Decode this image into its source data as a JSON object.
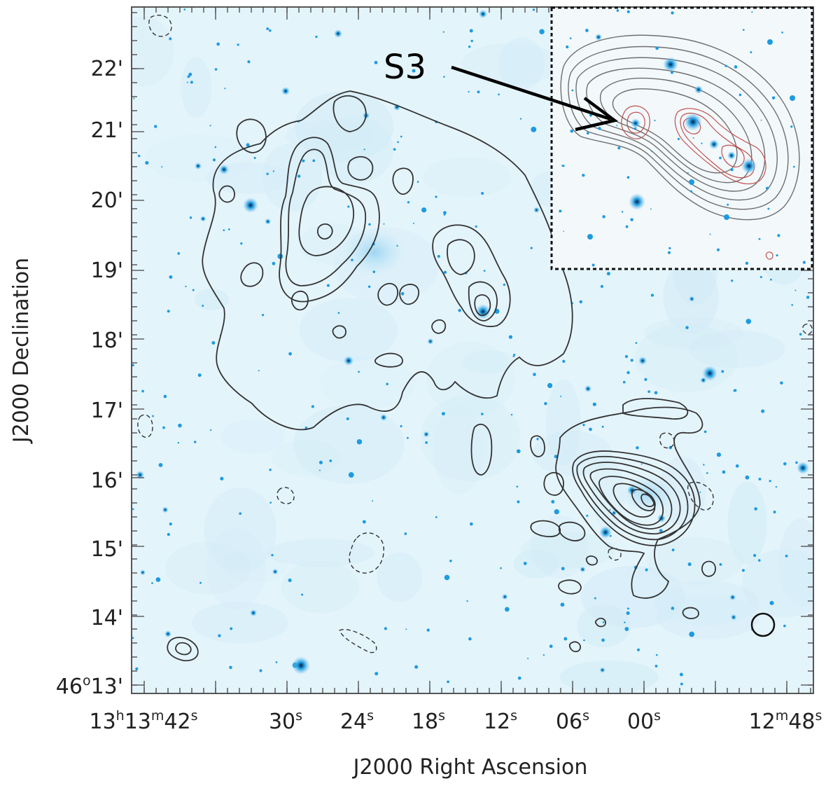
{
  "figure": {
    "x_axis_label": "J2000 Right Ascension",
    "y_axis_label": "J2000 Declination",
    "inset_source_label": "S3",
    "x_tick_labels": [
      {
        "parts": [
          [
            "13",
            ""
          ],
          [
            "h",
            "sup"
          ],
          [
            "13",
            ""
          ],
          [
            "m",
            "sup"
          ],
          [
            "42",
            ""
          ],
          [
            "s",
            "sup"
          ]
        ]
      },
      {
        "parts": [
          [
            "30",
            ""
          ],
          [
            "s",
            "sup"
          ]
        ]
      },
      {
        "parts": [
          [
            "24",
            ""
          ],
          [
            "s",
            "sup"
          ]
        ]
      },
      {
        "parts": [
          [
            "18",
            ""
          ],
          [
            "s",
            "sup"
          ]
        ]
      },
      {
        "parts": [
          [
            "12",
            ""
          ],
          [
            "s",
            "sup"
          ]
        ]
      },
      {
        "parts": [
          [
            "06",
            ""
          ],
          [
            "s",
            "sup"
          ]
        ]
      },
      {
        "parts": [
          [
            "00",
            ""
          ],
          [
            "s",
            "sup"
          ]
        ]
      },
      {
        "parts": [
          [
            "12",
            ""
          ],
          [
            "m",
            "sup"
          ],
          [
            "48",
            ""
          ],
          [
            "s",
            "sup"
          ]
        ]
      }
    ],
    "y_tick_labels": [
      {
        "parts": [
          [
            "22",
            ""
          ],
          [
            "'",
            ""
          ]
        ]
      },
      {
        "parts": [
          [
            "21",
            ""
          ],
          [
            "'",
            ""
          ]
        ]
      },
      {
        "parts": [
          [
            "20",
            ""
          ],
          [
            "'",
            ""
          ]
        ]
      },
      {
        "parts": [
          [
            "19",
            ""
          ],
          [
            "'",
            ""
          ]
        ]
      },
      {
        "parts": [
          [
            "18",
            ""
          ],
          [
            "'",
            ""
          ]
        ]
      },
      {
        "parts": [
          [
            "17",
            ""
          ],
          [
            "'",
            ""
          ]
        ]
      },
      {
        "parts": [
          [
            "16",
            ""
          ],
          [
            "'",
            ""
          ]
        ]
      },
      {
        "parts": [
          [
            "15",
            ""
          ],
          [
            "'",
            ""
          ]
        ]
      },
      {
        "parts": [
          [
            "14",
            ""
          ],
          [
            "'",
            ""
          ]
        ]
      },
      {
        "parts": [
          [
            "46",
            ""
          ],
          [
            "o",
            "sup"
          ],
          [
            "13",
            ""
          ],
          [
            "'",
            ""
          ]
        ]
      }
    ],
    "colors": {
      "sky": "#e4f4fb",
      "star": "#1e9be0",
      "star_core": "#0b1e3c",
      "contour": "#333333",
      "inset_contour_red": "#c0504d",
      "inset_contour_grey": "#6f6f6f"
    }
  }
}
